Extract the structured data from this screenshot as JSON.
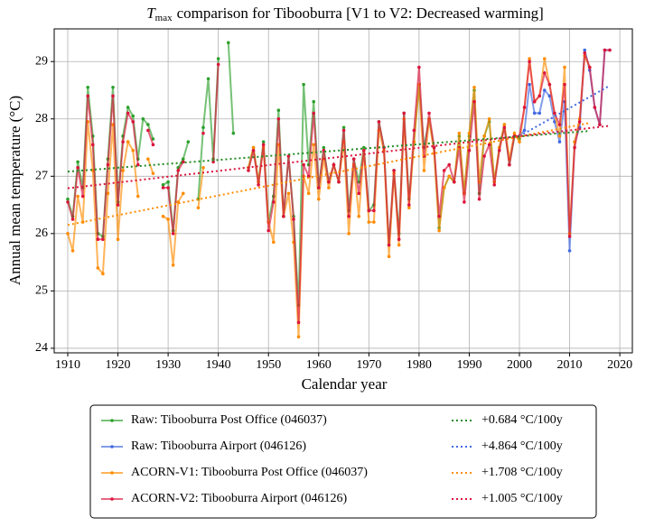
{
  "chart_data": {
    "type": "line",
    "title": {
      "symbol": "T",
      "subscript": "max",
      "text": "comparison for Tibooburra  [V1 to V2: Decreased warming]"
    },
    "x_label": "Calendar year",
    "y_label": "Annual mean temperature (°C)",
    "xlim": [
      1907.3,
      2022.5
    ],
    "ylim": [
      23.92,
      29.57
    ],
    "xticks": [
      1910,
      1920,
      1930,
      1940,
      1950,
      1960,
      1970,
      1980,
      1990,
      2000,
      2010,
      2020
    ],
    "yticks": [
      24,
      25,
      26,
      27,
      28,
      29
    ],
    "grid": true,
    "legend": "bottom",
    "x": [
      1910,
      1911,
      1912,
      1913,
      1914,
      1915,
      1916,
      1917,
      1918,
      1919,
      1920,
      1921,
      1922,
      1923,
      1924,
      1925,
      1926,
      1927,
      1928,
      1929,
      1930,
      1931,
      1932,
      1933,
      1934,
      1935,
      1936,
      1937,
      1938,
      1939,
      1940,
      1941,
      1942,
      1943,
      1944,
      1945,
      1946,
      1947,
      1948,
      1949,
      1950,
      1951,
      1952,
      1953,
      1954,
      1955,
      1956,
      1957,
      1958,
      1959,
      1960,
      1961,
      1962,
      1963,
      1964,
      1965,
      1966,
      1967,
      1968,
      1969,
      1970,
      1971,
      1972,
      1973,
      1974,
      1975,
      1976,
      1977,
      1978,
      1979,
      1980,
      1981,
      1982,
      1983,
      1984,
      1985,
      1986,
      1987,
      1988,
      1989,
      1990,
      1991,
      1992,
      1993,
      1994,
      1995,
      1996,
      1997,
      1998,
      1999,
      2000,
      2001,
      2002,
      2003,
      2004,
      2005,
      2006,
      2007,
      2008,
      2009,
      2010,
      2011,
      2012,
      2013,
      2014,
      2015,
      2016,
      2017,
      2018
    ],
    "series": [
      {
        "name": "Raw: Tibooburra Post Office (046037)",
        "color": "#2ca02c",
        "values": [
          26.6,
          26.3,
          27.25,
          26.8,
          28.55,
          27.7,
          26.0,
          25.95,
          27.3,
          28.55,
          26.55,
          27.7,
          28.2,
          28.05,
          27.3,
          28.0,
          27.9,
          27.65,
          null,
          26.85,
          26.9,
          26.05,
          27.15,
          27.3,
          27.6,
          null,
          26.6,
          27.85,
          28.7,
          27.3,
          29.05,
          null,
          29.33,
          27.75,
          null,
          null,
          27.15,
          27.5,
          26.9,
          27.6,
          26.2,
          26.65,
          28.15,
          26.3,
          27.35,
          26.3,
          24.75,
          28.6,
          27.2,
          28.3,
          26.8,
          27.5,
          26.9,
          27.2,
          26.9,
          27.85,
          26.4,
          27.3,
          26.9,
          27.5,
          26.4,
          26.5,
          27.95,
          27.5,
          25.8,
          27.1,
          26.0,
          28.1,
          26.6,
          27.6,
          28.6,
          27.5,
          28.0,
          27.5,
          26.1,
          26.8,
          27.0,
          26.9,
          27.7,
          26.7,
          27.7,
          28.5,
          26.7,
          27.7,
          27.95,
          26.9,
          27.5,
          27.9,
          27.2,
          27.7,
          27.65,
          null,
          null,
          null,
          null,
          null,
          null,
          null,
          null,
          null,
          null,
          null,
          null,
          null,
          null,
          null,
          null,
          null,
          null
        ]
      },
      {
        "name": "Raw: Tibooburra Airport (046126)",
        "color": "#4169e1",
        "values": [
          null,
          null,
          null,
          null,
          null,
          null,
          null,
          null,
          null,
          null,
          null,
          null,
          null,
          null,
          null,
          null,
          null,
          null,
          null,
          null,
          null,
          null,
          null,
          null,
          null,
          null,
          null,
          null,
          null,
          null,
          null,
          null,
          null,
          null,
          null,
          null,
          null,
          null,
          null,
          null,
          null,
          null,
          null,
          null,
          null,
          null,
          null,
          null,
          null,
          null,
          null,
          null,
          null,
          null,
          null,
          null,
          null,
          null,
          null,
          null,
          null,
          null,
          null,
          null,
          null,
          null,
          null,
          null,
          null,
          null,
          null,
          null,
          null,
          null,
          null,
          null,
          null,
          null,
          null,
          null,
          null,
          null,
          null,
          null,
          null,
          null,
          null,
          null,
          null,
          null,
          27.7,
          27.8,
          28.6,
          28.1,
          28.1,
          28.5,
          28.4,
          27.95,
          27.6,
          28.3,
          25.7,
          27.6,
          27.85,
          29.2,
          28.85,
          28.2,
          27.9,
          29.2,
          29.2
        ]
      },
      {
        "name": "ACORN-V1: Tibooburra Post Office (046037)",
        "color": "#ff8c00",
        "values": [
          26.0,
          25.7,
          26.65,
          26.2,
          27.95,
          27.1,
          25.4,
          25.3,
          26.7,
          27.9,
          25.9,
          27.1,
          27.6,
          27.45,
          26.65,
          null,
          27.3,
          27.05,
          null,
          26.3,
          26.25,
          25.45,
          26.55,
          26.7,
          null,
          null,
          26.45,
          27.15,
          null,
          null,
          null,
          null,
          null,
          null,
          null,
          null,
          27.15,
          27.5,
          26.9,
          27.5,
          26.2,
          25.85,
          27.55,
          26.3,
          26.7,
          25.85,
          24.2,
          27.0,
          26.7,
          27.55,
          26.6,
          27.3,
          26.8,
          27.2,
          26.9,
          27.6,
          26.0,
          27.2,
          26.3,
          27.45,
          26.2,
          26.2,
          27.8,
          27.45,
          25.6,
          27.05,
          25.8,
          28.0,
          26.45,
          27.6,
          28.6,
          27.1,
          28.0,
          27.4,
          26.05,
          26.8,
          27.0,
          26.9,
          27.75,
          26.7,
          27.75,
          28.55,
          26.9,
          27.7,
          28.0,
          26.9,
          27.5,
          27.9,
          27.3,
          27.75,
          27.6,
          28.2,
          29.05,
          28.3,
          28.4,
          29.05,
          28.6,
          28.1,
          27.7,
          28.9,
          26.0,
          27.6,
          28.0,
          29.1,
          28.9,
          null,
          null,
          null,
          null
        ]
      },
      {
        "name": "ACORN-V2: Tibooburra Airport (046126)",
        "color": "#dc143c",
        "values": [
          26.55,
          26.25,
          27.15,
          26.65,
          28.4,
          27.55,
          25.9,
          25.9,
          27.2,
          28.4,
          26.5,
          27.6,
          28.1,
          27.95,
          27.2,
          null,
          27.8,
          27.55,
          null,
          26.8,
          26.8,
          26.0,
          27.1,
          27.25,
          null,
          null,
          null,
          27.75,
          null,
          27.25,
          28.95,
          null,
          null,
          null,
          null,
          null,
          27.1,
          27.45,
          26.85,
          27.55,
          26.05,
          26.55,
          28.0,
          26.3,
          27.35,
          26.25,
          24.45,
          27.2,
          27.0,
          28.1,
          26.8,
          27.45,
          26.9,
          27.2,
          26.9,
          27.8,
          26.3,
          27.3,
          26.7,
          27.45,
          26.4,
          26.4,
          27.95,
          27.5,
          25.8,
          27.1,
          25.9,
          28.1,
          26.5,
          27.8,
          28.9,
          27.35,
          28.1,
          27.5,
          26.3,
          27.1,
          27.2,
          26.9,
          27.5,
          26.55,
          27.45,
          28.3,
          26.6,
          27.35,
          27.55,
          26.85,
          27.45,
          27.85,
          27.2,
          27.7,
          27.7,
          28.2,
          29.0,
          28.3,
          28.4,
          28.8,
          28.6,
          28.1,
          27.9,
          28.6,
          25.95,
          27.5,
          27.95,
          29.15,
          28.9,
          28.2,
          27.9,
          29.2,
          29.2
        ]
      }
    ],
    "trends": [
      {
        "name": "+0.684 °C/100y",
        "color": "#228b22",
        "x": [
          1910,
          2014
        ],
        "values": [
          27.08,
          27.79
        ]
      },
      {
        "name": "+4.864 °C/100y",
        "color": "#4169e1",
        "x": [
          2000,
          2018
        ],
        "values": [
          27.7,
          28.58
        ]
      },
      {
        "name": "+1.708 °C/100y",
        "color": "#ff8c00",
        "x": [
          1910,
          2014
        ],
        "values": [
          26.15,
          27.93
        ]
      },
      {
        "name": "+1.005 °C/100y",
        "color": "#dc143c",
        "x": [
          1910,
          2018
        ],
        "values": [
          26.79,
          27.88
        ]
      }
    ]
  }
}
